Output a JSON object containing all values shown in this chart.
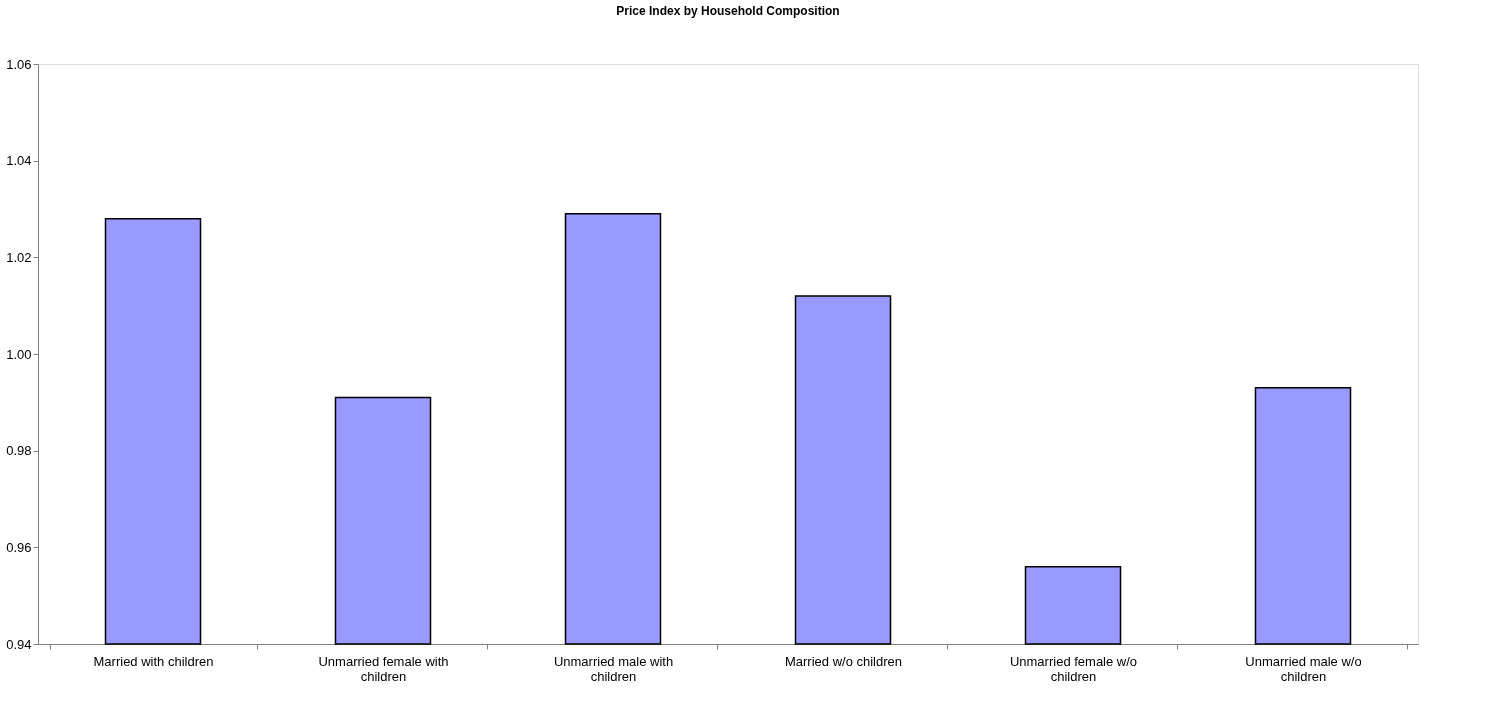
{
  "chart_data": {
    "type": "bar",
    "title": "Price Index by Household Composition",
    "categories": [
      "Married with children",
      "Unmarried female with children",
      "Unmarried male with children",
      "Married w/o children",
      "Unmarried female w/o children",
      "Unmarried male w/o children"
    ],
    "values": [
      1.028,
      0.991,
      1.029,
      1.012,
      0.956,
      0.993
    ],
    "color": "#9999ff",
    "ylim": [
      0.94,
      1.06
    ],
    "yticks": [
      0.94,
      0.96,
      0.98,
      {
        "value": 1.0,
        "label": "1.00"
      },
      1.02,
      1.04,
      1.06
    ],
    "grid": false
  }
}
